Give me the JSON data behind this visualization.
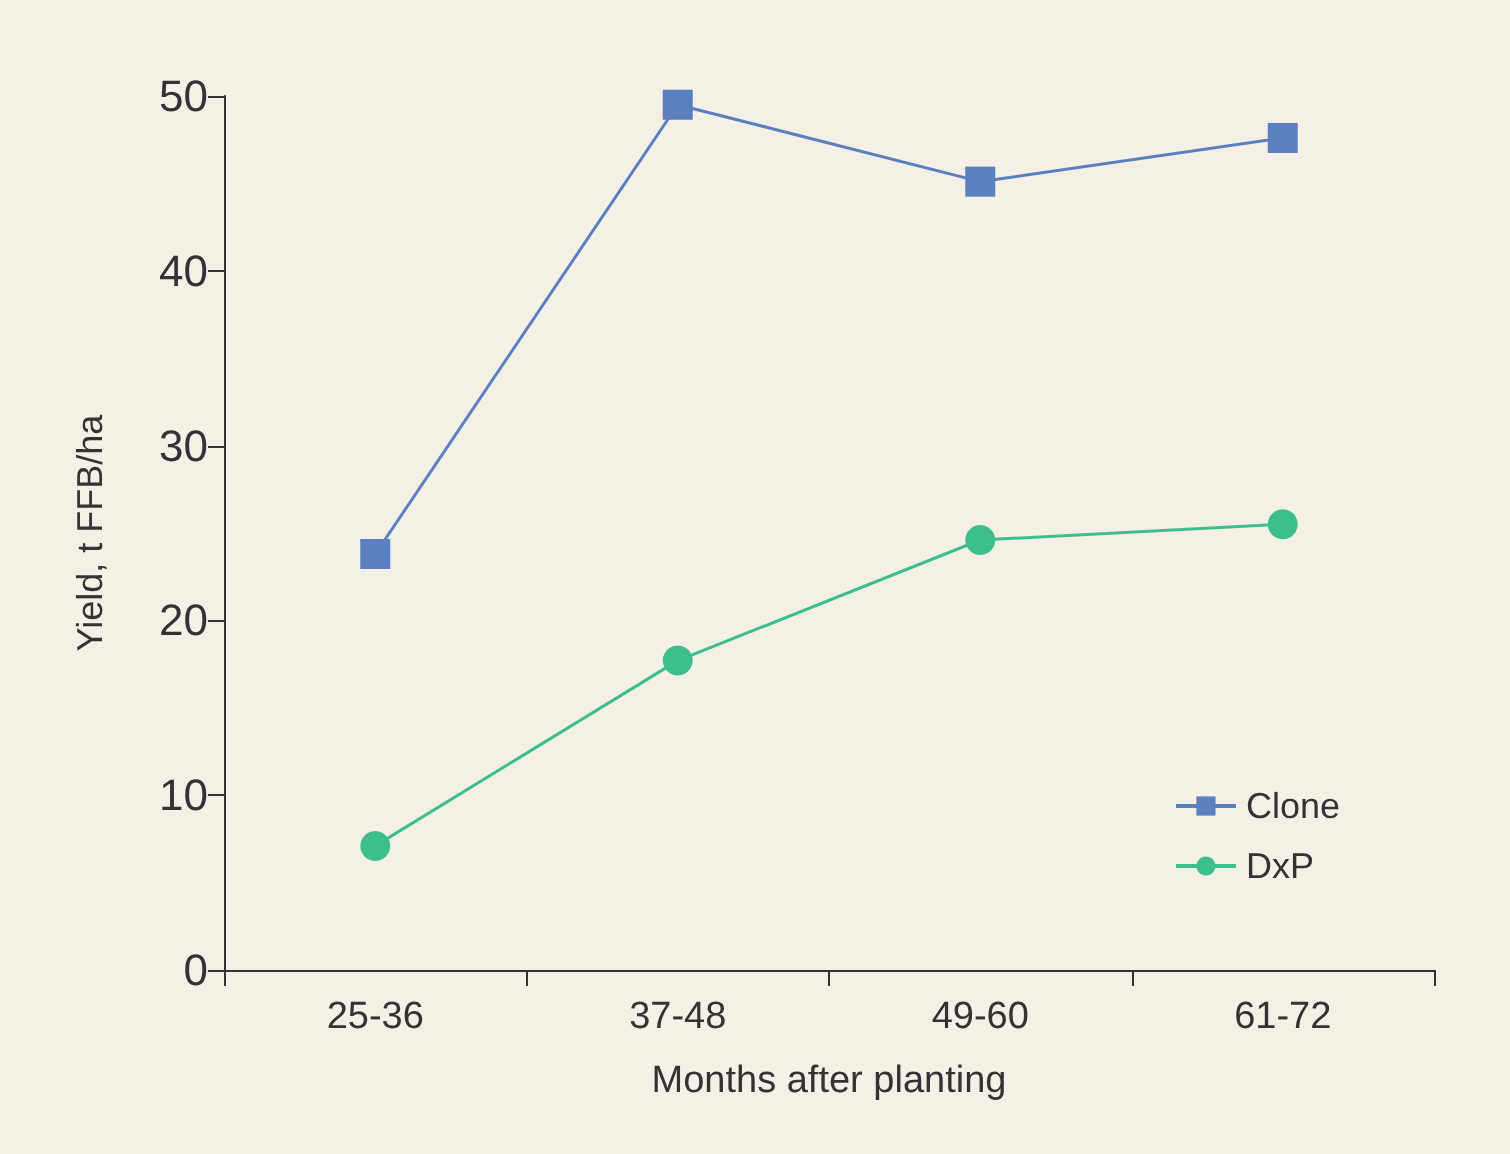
{
  "chart_data": {
    "type": "line",
    "xlabel": "Months after planting",
    "ylabel": "Yield, t FFB/ha",
    "categories": [
      "25-36",
      "37-48",
      "49-60",
      "61-72"
    ],
    "series": [
      {
        "name": "Clone",
        "color": "#5b80c0",
        "marker": "square",
        "values": [
          23.8,
          49.5,
          45.1,
          47.6
        ]
      },
      {
        "name": "DxP",
        "color": "#3cbf8a",
        "marker": "circle",
        "values": [
          7.1,
          17.7,
          24.6,
          25.5
        ]
      }
    ],
    "ylim": [
      0,
      50
    ],
    "yticks": [
      0,
      10,
      20,
      30,
      40,
      50
    ],
    "grid": false,
    "legend": "bottom right",
    "line_style": "solid"
  }
}
